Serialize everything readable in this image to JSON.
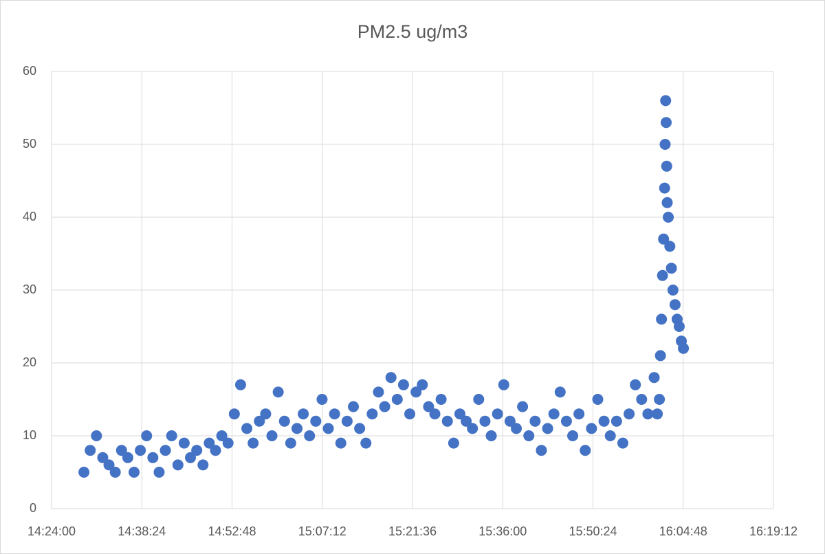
{
  "chart_data": {
    "type": "scatter",
    "title": "PM2.5 ug/m3",
    "color": "#4472c4",
    "grid": true,
    "xlim": [
      51840,
      58752
    ],
    "xticks": [
      {
        "value": 51840,
        "label": "14:24:00"
      },
      {
        "value": 52704,
        "label": "14:38:24"
      },
      {
        "value": 53568,
        "label": "14:52:48"
      },
      {
        "value": 54432,
        "label": "15:07:12"
      },
      {
        "value": 55296,
        "label": "15:21:36"
      },
      {
        "value": 56160,
        "label": "15:36:00"
      },
      {
        "value": 57024,
        "label": "15:50:24"
      },
      {
        "value": 57888,
        "label": "16:04:48"
      },
      {
        "value": 58752,
        "label": "16:19:12"
      }
    ],
    "ylim": [
      0,
      60
    ],
    "yticks": [
      0,
      10,
      20,
      30,
      40,
      50,
      60
    ],
    "x": [
      52150,
      52210,
      52270,
      52330,
      52390,
      52450,
      52510,
      52570,
      52630,
      52690,
      52750,
      52810,
      52870,
      52930,
      52990,
      53050,
      53110,
      53170,
      53230,
      53290,
      53350,
      53410,
      53470,
      53530,
      53590,
      53650,
      53710,
      53770,
      53830,
      53890,
      53950,
      54010,
      54070,
      54130,
      54190,
      54250,
      54310,
      54370,
      54430,
      54490,
      54550,
      54610,
      54670,
      54730,
      54790,
      54850,
      54910,
      54970,
      55030,
      55090,
      55150,
      55210,
      55270,
      55330,
      55390,
      55450,
      55510,
      55570,
      55630,
      55690,
      55750,
      55810,
      55870,
      55930,
      55990,
      56050,
      56110,
      56170,
      56230,
      56290,
      56350,
      56410,
      56470,
      56530,
      56590,
      56650,
      56710,
      56770,
      56830,
      56890,
      56950,
      57010,
      57070,
      57130,
      57190,
      57250,
      57310,
      57370,
      57430,
      57490,
      57550,
      57610,
      57640,
      57660,
      57670,
      57680,
      57690,
      57700,
      57710,
      57715,
      57720,
      57725,
      57730,
      57735,
      57745,
      57760,
      57775,
      57790,
      57810,
      57830,
      57850,
      57870,
      57890
    ],
    "values": [
      5,
      8,
      10,
      7,
      6,
      5,
      8,
      7,
      5,
      8,
      10,
      7,
      5,
      8,
      10,
      6,
      9,
      7,
      8,
      6,
      9,
      8,
      10,
      9,
      13,
      17,
      11,
      9,
      12,
      13,
      10,
      16,
      12,
      9,
      11,
      13,
      10,
      12,
      15,
      11,
      13,
      9,
      12,
      14,
      11,
      9,
      13,
      16,
      14,
      18,
      15,
      17,
      13,
      16,
      17,
      14,
      13,
      15,
      12,
      9,
      13,
      12,
      11,
      15,
      12,
      10,
      13,
      17,
      12,
      11,
      14,
      10,
      12,
      8,
      11,
      13,
      16,
      12,
      10,
      13,
      8,
      11,
      15,
      12,
      10,
      12,
      9,
      13,
      17,
      15,
      13,
      18,
      13,
      15,
      21,
      26,
      32,
      37,
      44,
      50,
      56,
      53,
      47,
      42,
      40,
      36,
      33,
      30,
      28,
      26,
      25,
      23,
      22
    ]
  }
}
